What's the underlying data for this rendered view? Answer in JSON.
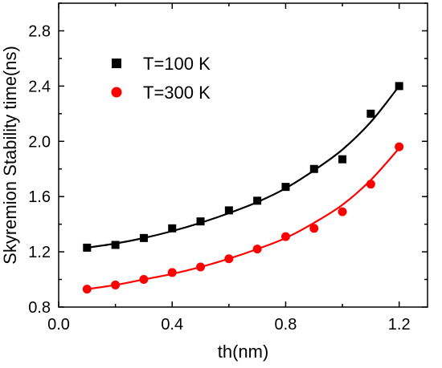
{
  "chart_data": {
    "type": "scatter",
    "title": "",
    "xlabel": "th(nm)",
    "ylabel": "Skyremion Stability time(ns)",
    "xlim": [
      0.0,
      1.3
    ],
    "ylim": [
      0.8,
      3.0
    ],
    "xticks": [
      0.0,
      0.4,
      0.8,
      1.2
    ],
    "yticks": [
      0.8,
      1.2,
      1.6,
      2.0,
      2.4,
      2.8
    ],
    "xtick_labels": [
      "0.0",
      "0.4",
      "0.8",
      "1.2"
    ],
    "ytick_labels": [
      "0.8",
      "1.2",
      "1.6",
      "2.0",
      "2.4",
      "2.8"
    ],
    "grid": false,
    "legend_position": "top-left",
    "series": [
      {
        "name": "T=100 K",
        "marker": "square",
        "color": "#000000",
        "fit_line": true,
        "x": [
          0.1,
          0.2,
          0.3,
          0.4,
          0.5,
          0.6,
          0.7,
          0.8,
          0.9,
          1.0,
          1.1,
          1.2
        ],
        "y": [
          1.23,
          1.25,
          1.3,
          1.37,
          1.42,
          1.5,
          1.57,
          1.67,
          1.8,
          1.87,
          2.2,
          2.4
        ],
        "fit_y": [
          1.23,
          1.26,
          1.3,
          1.35,
          1.41,
          1.48,
          1.56,
          1.66,
          1.79,
          1.94,
          2.14,
          2.4
        ]
      },
      {
        "name": "T=300 K",
        "marker": "circle",
        "color": "#ff0000",
        "fit_line": true,
        "x": [
          0.1,
          0.2,
          0.3,
          0.4,
          0.5,
          0.6,
          0.7,
          0.8,
          0.9,
          1.0,
          1.1,
          1.2
        ],
        "y": [
          0.93,
          0.96,
          1.0,
          1.05,
          1.09,
          1.15,
          1.22,
          1.31,
          1.37,
          1.49,
          1.69,
          1.96
        ],
        "fit_y": [
          0.93,
          0.96,
          1.0,
          1.04,
          1.09,
          1.15,
          1.22,
          1.3,
          1.41,
          1.54,
          1.72,
          1.95
        ]
      }
    ]
  }
}
